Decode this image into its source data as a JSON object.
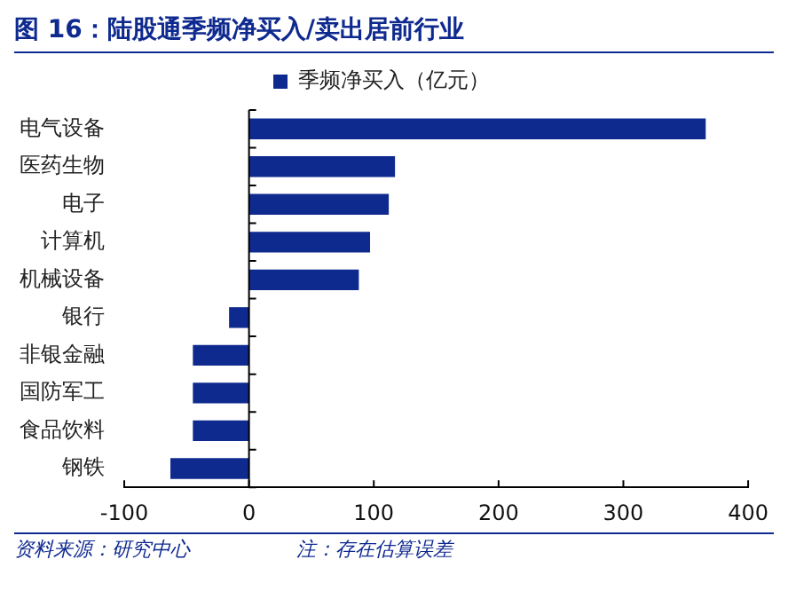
{
  "chart_data": {
    "type": "bar",
    "orientation": "horizontal",
    "title": "图 16：陆股通季频净买入/卖出居前行业",
    "categories": [
      "电气设备",
      "医药生物",
      "电子",
      "计算机",
      "机械设备",
      "银行",
      "非银金融",
      "国防军工",
      "食品饮料",
      "钢铁"
    ],
    "series": [
      {
        "name": "季频净买入（亿元）",
        "color": "#0f2a8f",
        "values": [
          366,
          117,
          112,
          97,
          88,
          -16,
          -45,
          -45,
          -45,
          -63
        ]
      }
    ],
    "xlim": [
      -100,
      400
    ],
    "xticks": [
      -100,
      0,
      100,
      200,
      300,
      400
    ],
    "legend": "top",
    "annotations": [
      "资料来源：研究中心",
      "注：存在估算误差"
    ]
  }
}
